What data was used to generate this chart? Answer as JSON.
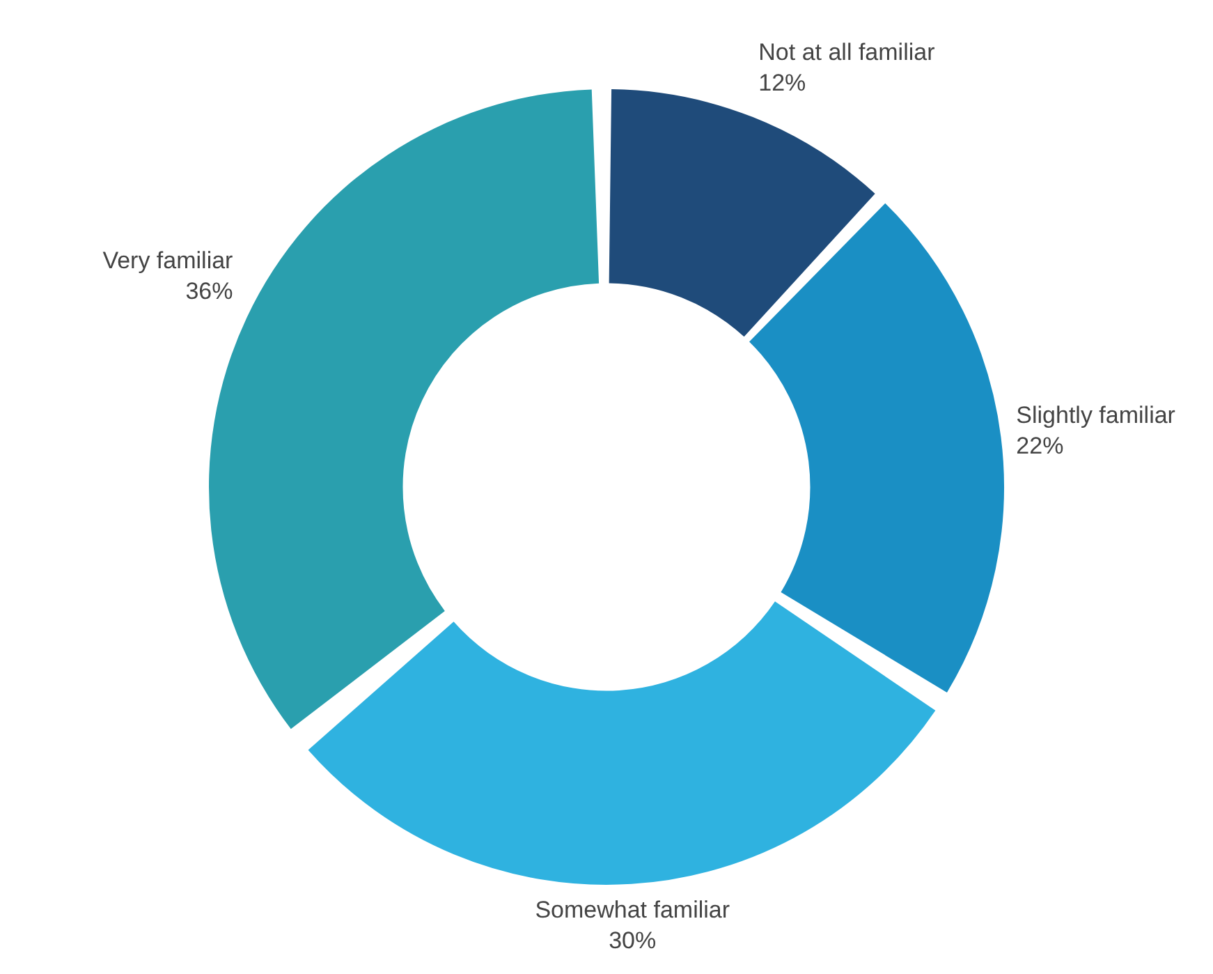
{
  "chart_data": {
    "type": "donut",
    "categories": [
      "Not at all familiar",
      "Slightly familiar",
      "Somewhat familiar",
      "Very familiar"
    ],
    "values": [
      12,
      22,
      30,
      36
    ],
    "colors": [
      "#1f4b7a",
      "#1a8fc4",
      "#2fb2e0",
      "#2a9fae"
    ],
    "value_labels": [
      "12%",
      "22%",
      "30%",
      "36%"
    ],
    "legend": false
  }
}
